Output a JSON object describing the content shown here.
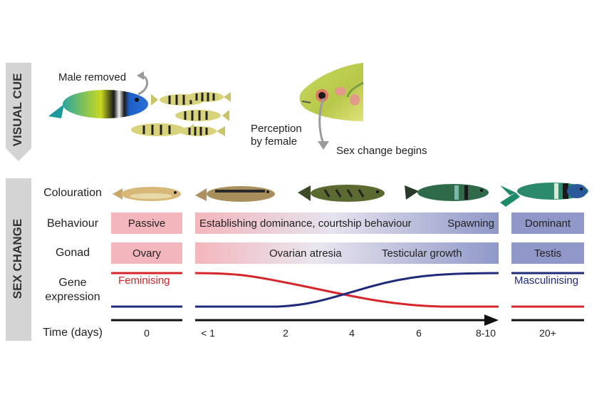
{
  "sidebar": {
    "visual_cue": "VISUAL CUE",
    "sex_change": "SEX CHANGE"
  },
  "visual_cue": {
    "male_removed": "Male removed",
    "perception_line1": "Perception",
    "perception_line2": "by female",
    "sex_change_begins": "Sex change begins"
  },
  "rows": {
    "colouration": "Colouration",
    "behaviour": "Behaviour",
    "gonad": "Gonad",
    "gene_line1": "Gene",
    "gene_line2": "expression",
    "time": "Time (days)"
  },
  "behaviour": {
    "passive": "Passive",
    "establishing": "Establishing dominance, courtship behaviour",
    "spawning": "Spawning",
    "dominant": "Dominant"
  },
  "gonad": {
    "ovary": "Ovary",
    "atresia": "Ovarian atresia",
    "testicular": "Testicular growth",
    "testis": "Testis"
  },
  "gene": {
    "feminising": "Feminising",
    "masculinising": "Masculinising"
  },
  "time_ticks": [
    "0",
    "< 1",
    "2",
    "4",
    "6",
    "8-10",
    "20+"
  ],
  "colors": {
    "feminising": "#d6252b",
    "masculinising": "#1f2a7a",
    "pink_box": "#f3b6bc",
    "blue_box": "#8f98c8",
    "banner": "#d4d4d4"
  }
}
